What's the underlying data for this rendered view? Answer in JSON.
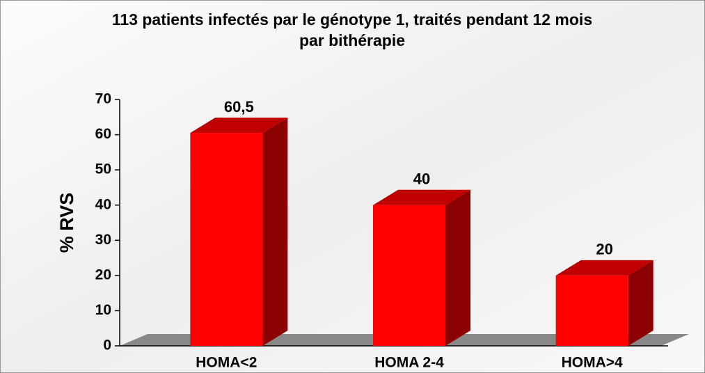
{
  "chart_data": {
    "type": "bar3d",
    "title": [
      "113 patients infectés par le génotype 1, traités pendant 12 mois",
      "par bithérapie"
    ],
    "y_label": "% RVS",
    "categories": [
      "HOMA<2",
      "HOMA 2-4",
      "HOMA>4"
    ],
    "values": [
      60.5,
      40,
      20
    ],
    "value_labels": [
      "60,5",
      "40",
      "20"
    ],
    "color": "#ff0000",
    "ylim": [
      0,
      70
    ],
    "yticks": [
      0,
      10,
      20,
      30,
      40,
      50,
      60,
      70
    ],
    "grid": false
  }
}
